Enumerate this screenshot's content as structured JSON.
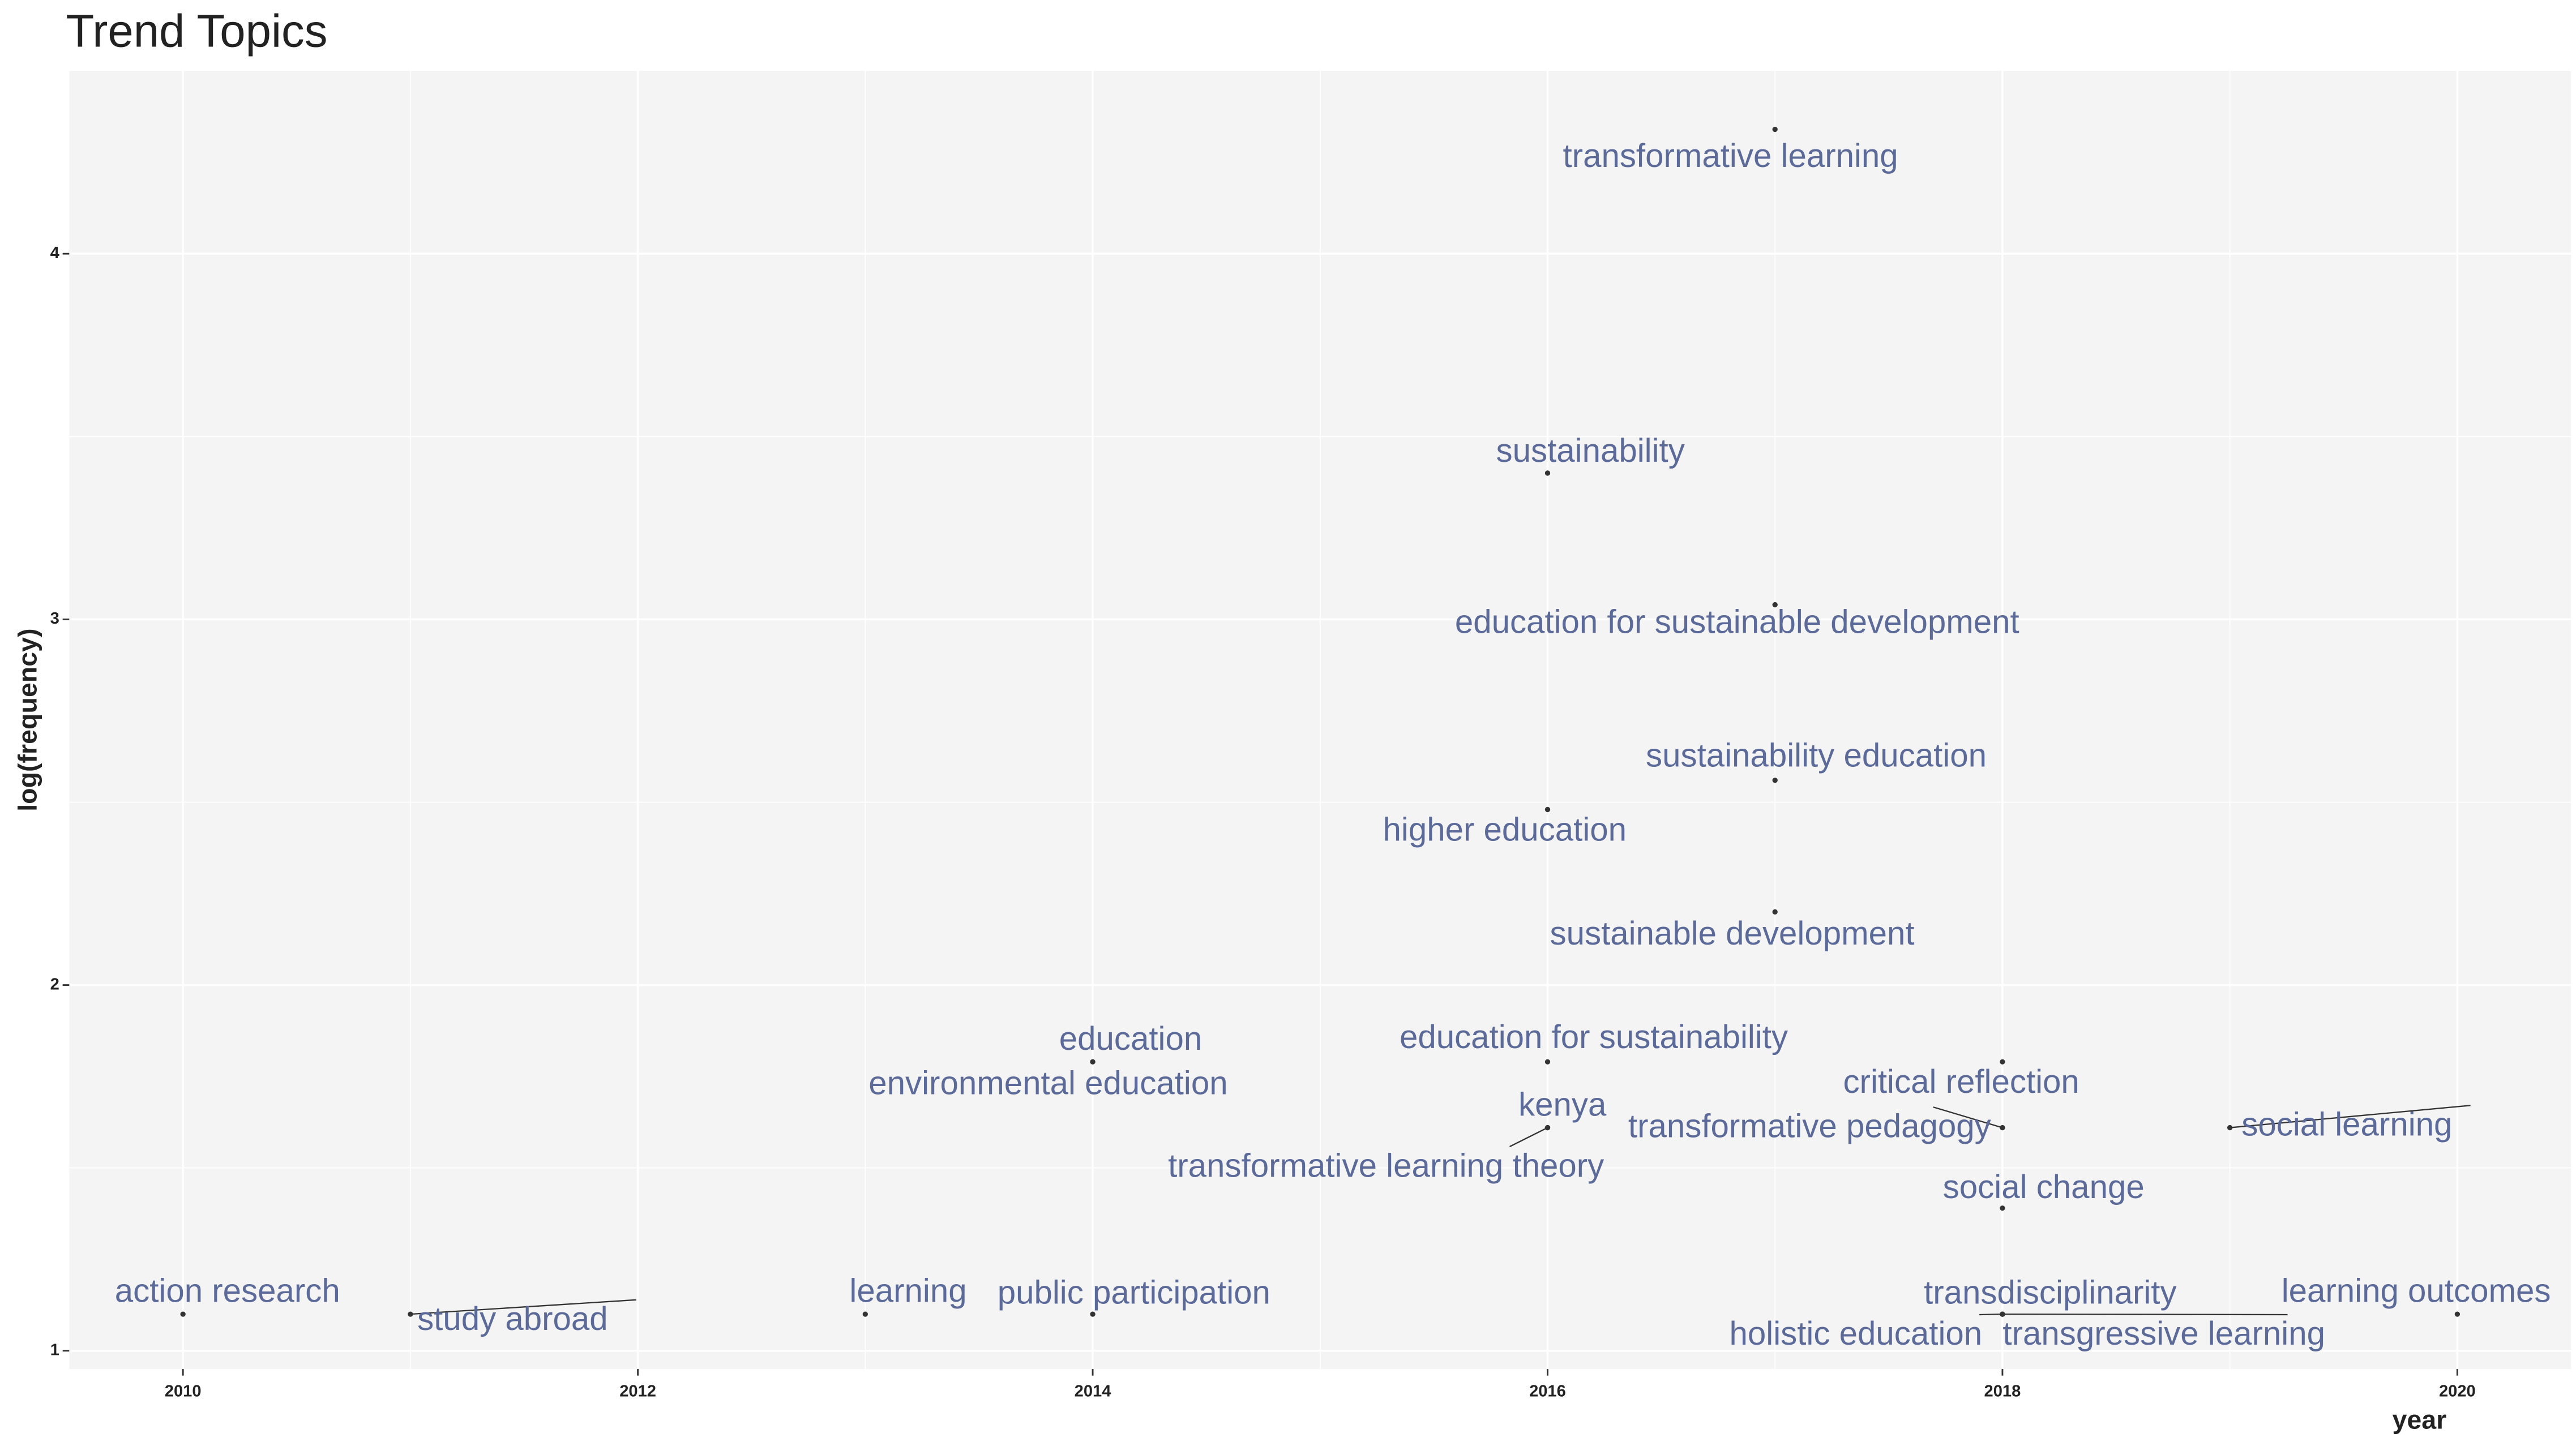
{
  "chart_data": {
    "type": "scatter",
    "title": "Trend Topics",
    "x_label": "year",
    "y_label": "log(frequency)",
    "labels": [
      "transformative learning",
      "sustainability",
      "education for sustainable development",
      "sustainability education",
      "higher education",
      "sustainable development",
      "education",
      "environmental education",
      "education for sustainability",
      "kenya",
      "transformative learning theory",
      "critical reflection",
      "transformative pedagogy",
      "social change",
      "social learning",
      "transdisciplinarity",
      "holistic education",
      "transgressive learning",
      "action research",
      "study abroad",
      "learning",
      "public participation",
      "learning outcomes"
    ],
    "x": [
      2017,
      2016,
      2017,
      2017,
      2016,
      2017,
      2014,
      2014,
      2016,
      2016,
      2016,
      2018,
      2018,
      2018,
      2019,
      2018,
      2018,
      2018,
      2010,
      2011,
      2013,
      2014,
      2020
    ],
    "y": [
      4.34,
      3.4,
      3.04,
      2.56,
      2.48,
      2.2,
      1.79,
      1.79,
      1.79,
      1.61,
      1.61,
      1.79,
      1.61,
      1.39,
      1.61,
      1.1,
      1.1,
      1.1,
      1.1,
      1.1,
      1.1,
      1.1,
      1.1
    ],
    "xlim": [
      2009.5,
      2020.5
    ],
    "ylim": [
      0.95,
      4.5
    ],
    "xticks": [
      2010,
      2012,
      2014,
      2016,
      2018,
      2020
    ],
    "yticks": [
      1,
      2,
      3,
      4
    ],
    "grid": true,
    "point_color": "#333333",
    "label_color": "#5b6a99"
  }
}
